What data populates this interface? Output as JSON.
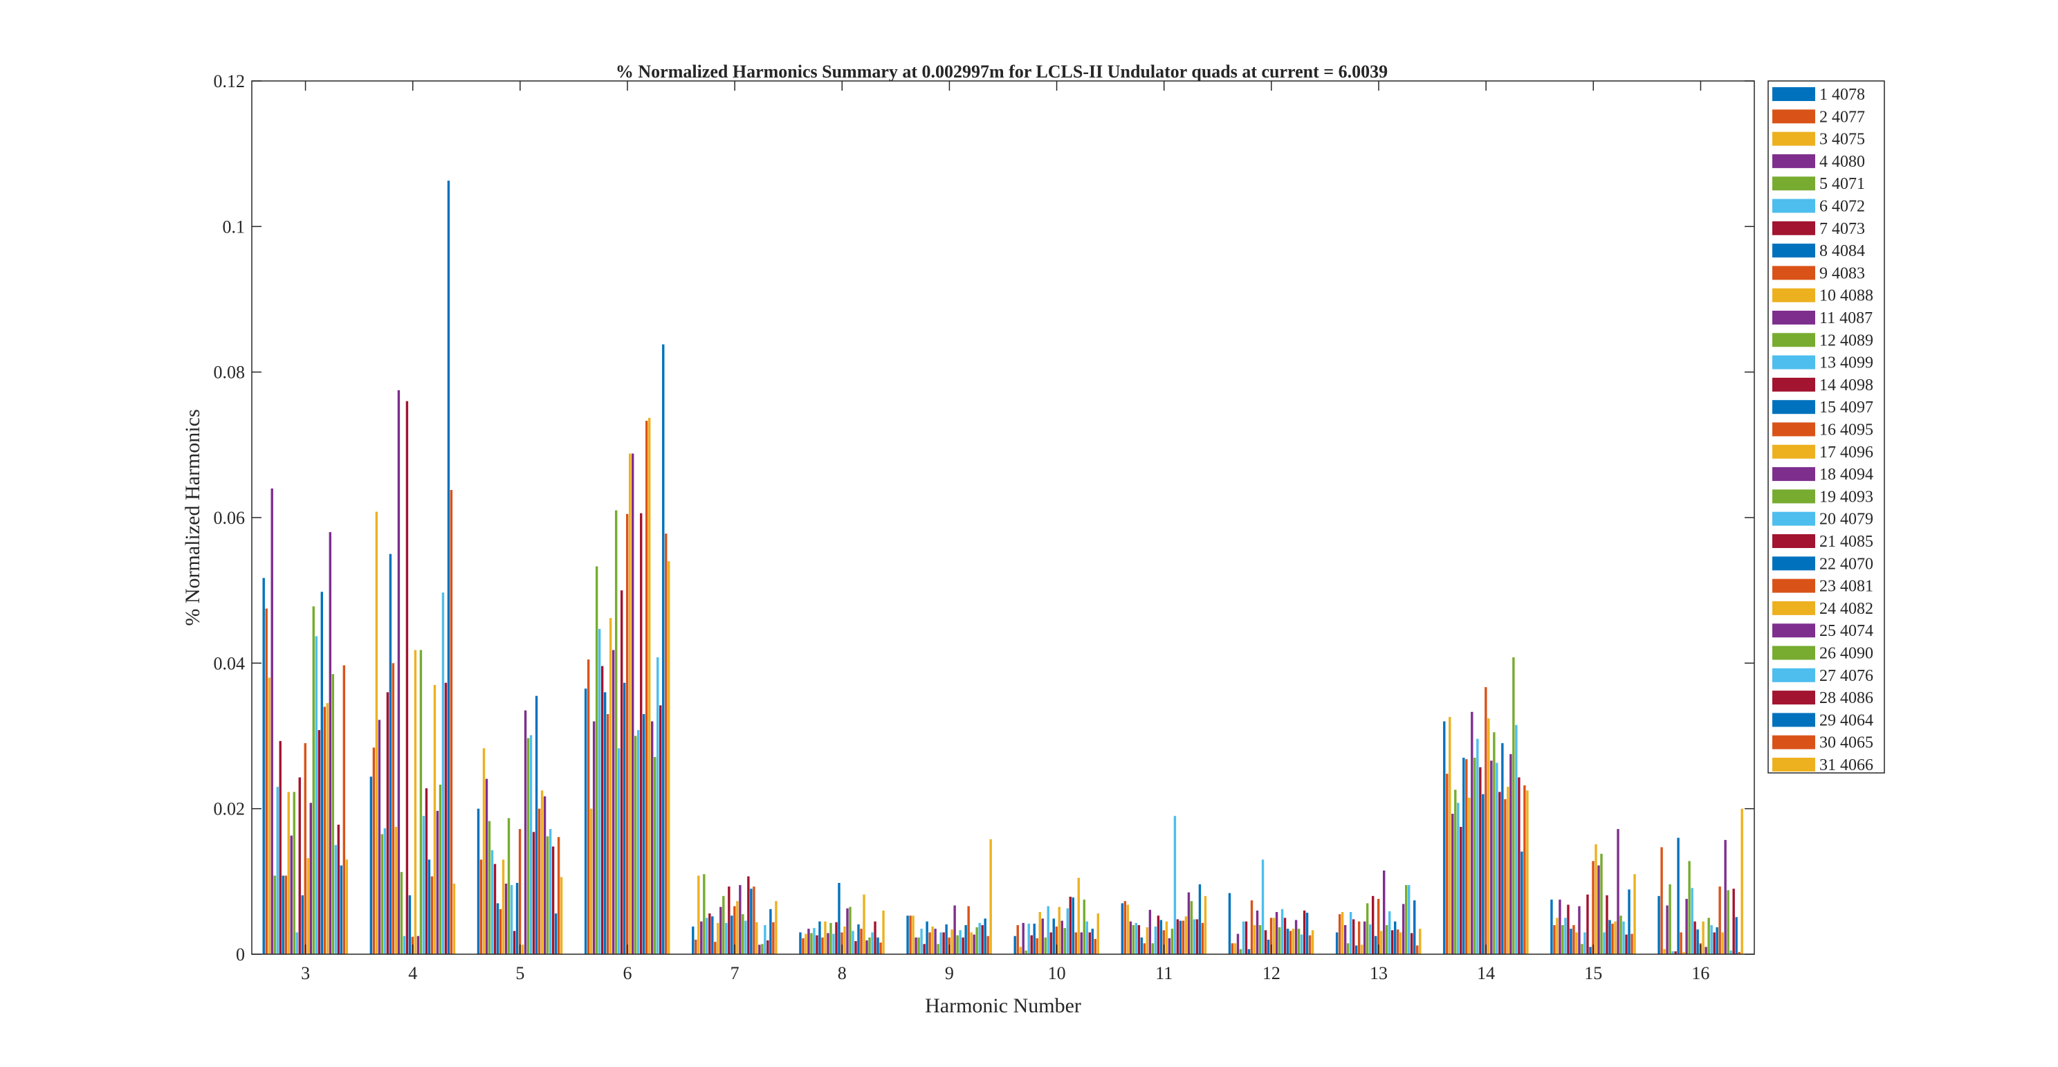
{
  "chart_data": {
    "type": "bar",
    "title": "% Normalized Harmonics Summary at 0.002997m for LCLS-II Undulator quads at current = 6.0039",
    "xlabel": "Harmonic Number",
    "ylabel": "% Normalized Harmonics",
    "ylim": [
      0,
      0.12
    ],
    "yticks": [
      "0",
      "0.02",
      "0.04",
      "0.06",
      "0.08",
      "0.1",
      "0.12"
    ],
    "categories": [
      "3",
      "4",
      "5",
      "6",
      "7",
      "8",
      "9",
      "10",
      "11",
      "12",
      "13",
      "14",
      "15",
      "16"
    ],
    "grid": false,
    "legend_position": "outside-right",
    "colors": [
      "#0072BD",
      "#D95319",
      "#EDB120",
      "#7E2F8E",
      "#77AC30",
      "#4DBEEE",
      "#A2142F"
    ],
    "series": [
      {
        "name": "1  4078",
        "values": [
          0.0517,
          0.0244,
          0.02,
          0.0365,
          0.0038,
          0.003,
          0.0053,
          0.0025,
          0.007,
          0.0084,
          0.003,
          0.032,
          0.0075,
          0.008
        ]
      },
      {
        "name": "2  4077",
        "values": [
          0.0475,
          0.0284,
          0.013,
          0.0405,
          0.002,
          0.0022,
          0.0053,
          0.004,
          0.0073,
          0.0015,
          0.0055,
          0.0248,
          0.004,
          0.0147
        ]
      },
      {
        "name": "3  4075",
        "values": [
          0.038,
          0.0608,
          0.0283,
          0.02,
          0.0108,
          0.0028,
          0.0053,
          0.001,
          0.0068,
          0.0015,
          0.0058,
          0.0326,
          0.005,
          0.0007
        ]
      },
      {
        "name": "4  4080",
        "values": [
          0.064,
          0.0322,
          0.0241,
          0.032,
          0.0045,
          0.0035,
          0.0023,
          0.0043,
          0.0045,
          0.0028,
          0.004,
          0.0193,
          0.0075,
          0.0067
        ]
      },
      {
        "name": "5  4071",
        "values": [
          0.0108,
          0.0165,
          0.0183,
          0.0533,
          0.011,
          0.0029,
          0.0023,
          0.0005,
          0.004,
          0.0007,
          0.0015,
          0.0226,
          0.004,
          0.0096
        ]
      },
      {
        "name": "6  4072",
        "values": [
          0.023,
          0.0173,
          0.0143,
          0.0447,
          0.005,
          0.0036,
          0.0035,
          0.0042,
          0.0043,
          0.0045,
          0.0058,
          0.0208,
          0.005,
          0.0004
        ]
      },
      {
        "name": "7  4073",
        "values": [
          0.0293,
          0.036,
          0.0124,
          0.0396,
          0.0056,
          0.0026,
          0.0014,
          0.0026,
          0.004,
          0.0045,
          0.0048,
          0.0175,
          0.0068,
          0.0004
        ]
      },
      {
        "name": "8  4084",
        "values": [
          0.0108,
          0.055,
          0.007,
          0.036,
          0.0052,
          0.0045,
          0.0045,
          0.0042,
          0.0023,
          0.0007,
          0.0012,
          0.027,
          0.0035,
          0.016
        ]
      },
      {
        "name": "9  4083",
        "values": [
          0.0108,
          0.04,
          0.0062,
          0.033,
          0.0017,
          0.0023,
          0.003,
          0.0022,
          0.0015,
          0.0074,
          0.0045,
          0.0268,
          0.004,
          0.003
        ]
      },
      {
        "name": "10  4088",
        "values": [
          0.0223,
          0.0175,
          0.013,
          0.0462,
          0.0043,
          0.0045,
          0.0038,
          0.0058,
          0.0037,
          0.004,
          0.0013,
          0.0215,
          0.003,
          0.0003
        ]
      },
      {
        "name": "11  4087",
        "values": [
          0.0163,
          0.0775,
          0.0097,
          0.0418,
          0.0065,
          0.0029,
          0.0035,
          0.0049,
          0.0061,
          0.006,
          0.0045,
          0.0333,
          0.0066,
          0.0076
        ]
      },
      {
        "name": "12  4089",
        "values": [
          0.0223,
          0.0113,
          0.0187,
          0.061,
          0.008,
          0.0043,
          0.0014,
          0.0023,
          0.0015,
          0.004,
          0.007,
          0.027,
          0.0014,
          0.0128
        ]
      },
      {
        "name": "13  4099",
        "values": [
          0.003,
          0.0025,
          0.0095,
          0.0283,
          0.0043,
          0.0028,
          0.003,
          0.0066,
          0.0038,
          0.013,
          0.0041,
          0.0296,
          0.003,
          0.0091
        ]
      },
      {
        "name": "14  4098",
        "values": [
          0.0243,
          0.076,
          0.0032,
          0.05,
          0.0093,
          0.0044,
          0.003,
          0.003,
          0.0053,
          0.0033,
          0.008,
          0.0257,
          0.0082,
          0.0045
        ]
      },
      {
        "name": "15  4097",
        "values": [
          0.0081,
          0.0081,
          0.0098,
          0.0373,
          0.0053,
          0.0098,
          0.0041,
          0.0049,
          0.0047,
          0.002,
          0.0025,
          0.022,
          0.001,
          0.0034
        ]
      },
      {
        "name": "16  4095",
        "values": [
          0.029,
          0.0024,
          0.0172,
          0.0605,
          0.0066,
          0.003,
          0.0023,
          0.0038,
          0.0033,
          0.005,
          0.0076,
          0.0367,
          0.0128,
          0.0015
        ]
      },
      {
        "name": "17  4096",
        "values": [
          0.0132,
          0.0418,
          0.0013,
          0.0688,
          0.0073,
          0.0038,
          0.0034,
          0.0065,
          0.0045,
          0.005,
          0.0032,
          0.0324,
          0.0151,
          0.0045
        ]
      },
      {
        "name": "18  4094",
        "values": [
          0.0208,
          0.0025,
          0.0335,
          0.0688,
          0.0095,
          0.0063,
          0.0067,
          0.0046,
          0.0022,
          0.0058,
          0.0115,
          0.0266,
          0.0122,
          0.001
        ]
      },
      {
        "name": "19  4093",
        "values": [
          0.0478,
          0.0418,
          0.0297,
          0.03,
          0.0055,
          0.0065,
          0.0026,
          0.0036,
          0.0035,
          0.0037,
          0.004,
          0.0305,
          0.0138,
          0.005
        ]
      },
      {
        "name": "20  4079",
        "values": [
          0.0437,
          0.019,
          0.0301,
          0.0308,
          0.0046,
          0.0032,
          0.0033,
          0.0063,
          0.019,
          0.0062,
          0.0059,
          0.0263,
          0.003,
          0.004
        ]
      },
      {
        "name": "21  4085",
        "values": [
          0.0308,
          0.0228,
          0.0168,
          0.0606,
          0.0107,
          0.0018,
          0.0023,
          0.0079,
          0.0048,
          0.005,
          0.0033,
          0.0223,
          0.0081,
          0.003
        ]
      },
      {
        "name": "22  4070",
        "values": [
          0.0498,
          0.013,
          0.0355,
          0.033,
          0.009,
          0.0041,
          0.004,
          0.0078,
          0.0046,
          0.0035,
          0.0045,
          0.029,
          0.0047,
          0.0037
        ]
      },
      {
        "name": "23  4081",
        "values": [
          0.034,
          0.0107,
          0.02,
          0.0733,
          0.0093,
          0.0035,
          0.0066,
          0.003,
          0.0046,
          0.0032,
          0.0034,
          0.0213,
          0.0042,
          0.0093
        ]
      },
      {
        "name": "24  4082",
        "values": [
          0.0345,
          0.037,
          0.0225,
          0.0737,
          0.0044,
          0.0082,
          0.003,
          0.0105,
          0.0052,
          0.0035,
          0.003,
          0.023,
          0.0045,
          0.003
        ]
      },
      {
        "name": "25  4074",
        "values": [
          0.058,
          0.0197,
          0.0217,
          0.032,
          0.0013,
          0.0019,
          0.0027,
          0.003,
          0.0085,
          0.0047,
          0.0069,
          0.0275,
          0.0172,
          0.0157
        ]
      },
      {
        "name": "26  4090",
        "values": [
          0.0385,
          0.0233,
          0.0162,
          0.0271,
          0.0014,
          0.0023,
          0.0037,
          0.0075,
          0.0073,
          0.0035,
          0.0095,
          0.0408,
          0.0053,
          0.0088
        ]
      },
      {
        "name": "27  4076",
        "values": [
          0.015,
          0.0497,
          0.0172,
          0.0408,
          0.004,
          0.003,
          0.0043,
          0.0045,
          0.0048,
          0.0027,
          0.0095,
          0.0315,
          0.0045,
          0.0005
        ]
      },
      {
        "name": "28  4086",
        "values": [
          0.0178,
          0.0373,
          0.0148,
          0.0342,
          0.0019,
          0.0045,
          0.004,
          0.003,
          0.0048,
          0.006,
          0.0029,
          0.0243,
          0.0027,
          0.009
        ]
      },
      {
        "name": "29  4064",
        "values": [
          0.0122,
          0.1063,
          0.0056,
          0.0838,
          0.0062,
          0.0023,
          0.0049,
          0.0035,
          0.0096,
          0.0057,
          0.0074,
          0.0141,
          0.0089,
          0.0051
        ]
      },
      {
        "name": "30  4065",
        "values": [
          0.0397,
          0.0638,
          0.0161,
          0.0578,
          0.0044,
          0.0016,
          0.0025,
          0.0021,
          0.0043,
          0.0026,
          0.0012,
          0.0232,
          0.0028,
          0.0003
        ]
      },
      {
        "name": "31  4066",
        "values": [
          0.013,
          0.0097,
          0.0106,
          0.054,
          0.0073,
          0.006,
          0.0158,
          0.0056,
          0.008,
          0.0033,
          0.0035,
          0.0225,
          0.011,
          0.02
        ]
      }
    ]
  }
}
